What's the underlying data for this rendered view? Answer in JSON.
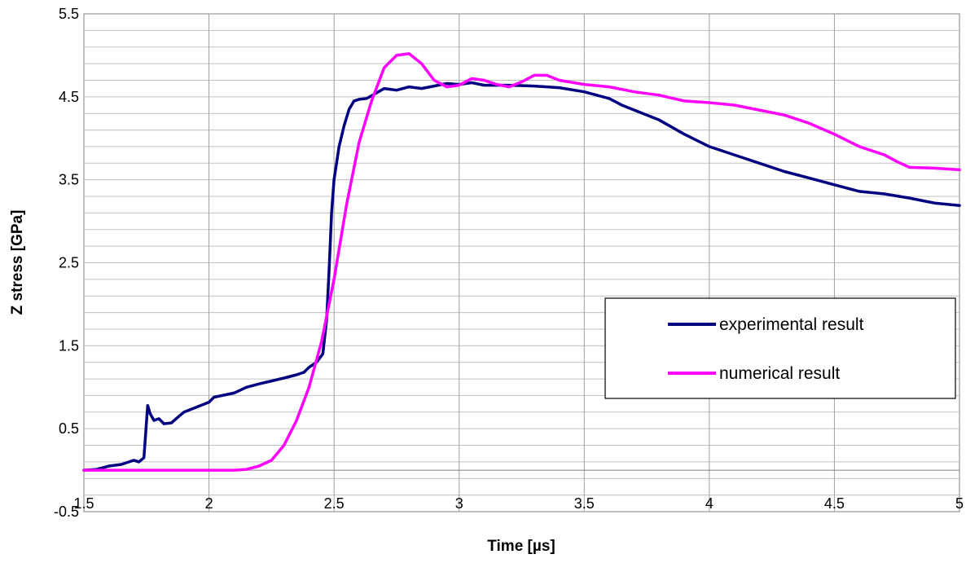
{
  "chart_data": {
    "type": "line",
    "title": "",
    "xlabel": "Time [µs]",
    "ylabel": "Z stress [GPa]",
    "xlim": [
      1.5,
      5
    ],
    "ylim": [
      -0.5,
      5.5
    ],
    "x_ticks": [
      "1.5",
      "2",
      "2.5",
      "3",
      "3.5",
      "4",
      "4.5",
      "5"
    ],
    "y_ticks": [
      "-0.5",
      "0.5",
      "1.5",
      "2.5",
      "3.5",
      "4.5",
      "5.5"
    ],
    "grid": true,
    "legend_position": "right",
    "series": [
      {
        "name": "experimental result",
        "color": "#000080",
        "points": [
          [
            1.5,
            0.0
          ],
          [
            1.55,
            0.01
          ],
          [
            1.6,
            0.05
          ],
          [
            1.65,
            0.07
          ],
          [
            1.7,
            0.12
          ],
          [
            1.72,
            0.1
          ],
          [
            1.74,
            0.15
          ],
          [
            1.755,
            0.78
          ],
          [
            1.765,
            0.68
          ],
          [
            1.78,
            0.6
          ],
          [
            1.8,
            0.62
          ],
          [
            1.82,
            0.56
          ],
          [
            1.85,
            0.57
          ],
          [
            1.88,
            0.65
          ],
          [
            1.9,
            0.7
          ],
          [
            1.95,
            0.76
          ],
          [
            2.0,
            0.82
          ],
          [
            2.02,
            0.88
          ],
          [
            2.1,
            0.93
          ],
          [
            2.15,
            1.0
          ],
          [
            2.2,
            1.04
          ],
          [
            2.3,
            1.11
          ],
          [
            2.35,
            1.15
          ],
          [
            2.38,
            1.18
          ],
          [
            2.4,
            1.24
          ],
          [
            2.43,
            1.3
          ],
          [
            2.455,
            1.4
          ],
          [
            2.47,
            1.8
          ],
          [
            2.48,
            2.4
          ],
          [
            2.49,
            3.1
          ],
          [
            2.5,
            3.5
          ],
          [
            2.52,
            3.9
          ],
          [
            2.54,
            4.15
          ],
          [
            2.56,
            4.35
          ],
          [
            2.58,
            4.45
          ],
          [
            2.6,
            4.47
          ],
          [
            2.63,
            4.48
          ],
          [
            2.66,
            4.53
          ],
          [
            2.7,
            4.6
          ],
          [
            2.75,
            4.58
          ],
          [
            2.8,
            4.62
          ],
          [
            2.85,
            4.6
          ],
          [
            2.9,
            4.63
          ],
          [
            2.95,
            4.66
          ],
          [
            3.0,
            4.65
          ],
          [
            3.05,
            4.67
          ],
          [
            3.1,
            4.64
          ],
          [
            3.2,
            4.64
          ],
          [
            3.3,
            4.63
          ],
          [
            3.4,
            4.61
          ],
          [
            3.5,
            4.56
          ],
          [
            3.6,
            4.48
          ],
          [
            3.65,
            4.4
          ],
          [
            3.7,
            4.34
          ],
          [
            3.8,
            4.22
          ],
          [
            3.9,
            4.05
          ],
          [
            4.0,
            3.9
          ],
          [
            4.1,
            3.8
          ],
          [
            4.2,
            3.7
          ],
          [
            4.3,
            3.6
          ],
          [
            4.4,
            3.52
          ],
          [
            4.5,
            3.44
          ],
          [
            4.6,
            3.36
          ],
          [
            4.7,
            3.33
          ],
          [
            4.8,
            3.28
          ],
          [
            4.9,
            3.22
          ],
          [
            5.0,
            3.19
          ]
        ]
      },
      {
        "name": "numerical result",
        "color": "#ff00ff",
        "points": [
          [
            1.5,
            0.0
          ],
          [
            2.0,
            0.0
          ],
          [
            2.1,
            0.0
          ],
          [
            2.15,
            0.01
          ],
          [
            2.2,
            0.05
          ],
          [
            2.25,
            0.12
          ],
          [
            2.3,
            0.3
          ],
          [
            2.35,
            0.6
          ],
          [
            2.4,
            1.0
          ],
          [
            2.45,
            1.55
          ],
          [
            2.5,
            2.3
          ],
          [
            2.55,
            3.2
          ],
          [
            2.6,
            3.95
          ],
          [
            2.65,
            4.45
          ],
          [
            2.7,
            4.85
          ],
          [
            2.75,
            5.0
          ],
          [
            2.8,
            5.02
          ],
          [
            2.85,
            4.9
          ],
          [
            2.9,
            4.7
          ],
          [
            2.95,
            4.62
          ],
          [
            3.0,
            4.64
          ],
          [
            3.05,
            4.72
          ],
          [
            3.1,
            4.7
          ],
          [
            3.15,
            4.65
          ],
          [
            3.2,
            4.62
          ],
          [
            3.25,
            4.68
          ],
          [
            3.3,
            4.76
          ],
          [
            3.35,
            4.76
          ],
          [
            3.4,
            4.7
          ],
          [
            3.5,
            4.65
          ],
          [
            3.6,
            4.62
          ],
          [
            3.7,
            4.56
          ],
          [
            3.8,
            4.52
          ],
          [
            3.9,
            4.45
          ],
          [
            4.0,
            4.43
          ],
          [
            4.1,
            4.4
          ],
          [
            4.2,
            4.34
          ],
          [
            4.3,
            4.28
          ],
          [
            4.4,
            4.18
          ],
          [
            4.5,
            4.05
          ],
          [
            4.6,
            3.9
          ],
          [
            4.7,
            3.8
          ],
          [
            4.75,
            3.72
          ],
          [
            4.8,
            3.65
          ],
          [
            4.9,
            3.64
          ],
          [
            5.0,
            3.62
          ]
        ]
      }
    ]
  }
}
